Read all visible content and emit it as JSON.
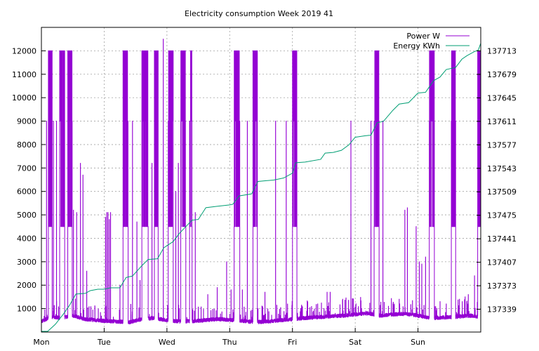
{
  "chart_data": {
    "type": "line",
    "title": "Electricity consumption Week 2019 41",
    "xlabel": "",
    "ylabel": "",
    "x_tick_labels": [
      "Mon",
      "Tue",
      "Wed",
      "Thu",
      "Fri",
      "Sat",
      "Sun"
    ],
    "xlim": [
      0,
      7
    ],
    "ylim": [
      0,
      13000
    ],
    "y_ticks": [
      1000,
      2000,
      3000,
      4000,
      5000,
      6000,
      7000,
      8000,
      9000,
      10000,
      11000,
      12000
    ],
    "y2lim": [
      137306,
      137747
    ],
    "y2_ticks": [
      137339,
      137373,
      137407,
      137441,
      137475,
      137509,
      137543,
      137577,
      137611,
      137645,
      137679,
      137713
    ],
    "grid": true,
    "legend": "top-right",
    "colors": {
      "power": "#9400d3",
      "energy": "#009e73"
    },
    "series": [
      {
        "name": "Power W",
        "axis": "left",
        "baseline": [
          [
            0.0,
            450
          ],
          [
            0.15,
            650
          ],
          [
            0.3,
            600
          ],
          [
            0.5,
            700
          ],
          [
            0.7,
            550
          ],
          [
            0.9,
            500
          ],
          [
            1.0,
            480
          ],
          [
            1.2,
            450
          ],
          [
            1.4,
            420
          ],
          [
            1.6,
            550
          ],
          [
            1.8,
            600
          ],
          [
            2.0,
            500
          ],
          [
            2.2,
            450
          ],
          [
            2.5,
            480
          ],
          [
            2.8,
            550
          ],
          [
            3.0,
            520
          ],
          [
            3.2,
            480
          ],
          [
            3.4,
            420
          ],
          [
            3.6,
            450
          ],
          [
            3.8,
            500
          ],
          [
            4.0,
            550
          ],
          [
            4.2,
            600
          ],
          [
            4.5,
            650
          ],
          [
            4.8,
            700
          ],
          [
            5.0,
            750
          ],
          [
            5.2,
            800
          ],
          [
            5.4,
            700
          ],
          [
            5.6,
            750
          ],
          [
            5.8,
            780
          ],
          [
            6.0,
            700
          ],
          [
            6.2,
            600
          ],
          [
            6.4,
            620
          ],
          [
            6.6,
            650
          ],
          [
            6.8,
            700
          ],
          [
            7.0,
            650
          ]
        ],
        "heavy_blocks": [
          [
            0.11,
            0.17
          ],
          [
            0.29,
            0.37
          ],
          [
            0.42,
            0.49
          ],
          [
            1.3,
            1.38
          ],
          [
            1.6,
            1.7
          ],
          [
            1.8,
            1.86
          ],
          [
            2.02,
            2.1
          ],
          [
            2.22,
            2.3
          ],
          [
            2.36,
            2.4
          ],
          [
            3.07,
            3.16
          ],
          [
            3.37,
            3.44
          ],
          [
            4.0,
            4.07
          ],
          [
            5.3,
            5.38
          ],
          [
            6.18,
            6.26
          ],
          [
            6.53,
            6.6
          ],
          [
            6.95,
            7.0
          ]
        ],
        "heavy_range": [
          4500,
          12000
        ],
        "spikes": [
          [
            0.08,
            9000
          ],
          [
            0.19,
            9000
          ],
          [
            0.24,
            9000
          ],
          [
            0.51,
            5200
          ],
          [
            0.56,
            5100
          ],
          [
            0.62,
            7200
          ],
          [
            0.66,
            6700
          ],
          [
            0.72,
            2600
          ],
          [
            1.02,
            4900
          ],
          [
            1.04,
            5100
          ],
          [
            1.06,
            5100
          ],
          [
            1.08,
            4800
          ],
          [
            1.1,
            5100
          ],
          [
            1.25,
            2000
          ],
          [
            1.45,
            9000
          ],
          [
            1.52,
            4700
          ],
          [
            1.57,
            2200
          ],
          [
            1.76,
            7200
          ],
          [
            1.94,
            12500
          ],
          [
            2.14,
            6000
          ],
          [
            2.18,
            7200
          ],
          [
            2.45,
            5100
          ],
          [
            2.65,
            1600
          ],
          [
            2.8,
            1900
          ],
          [
            2.95,
            3000
          ],
          [
            3.02,
            1800
          ],
          [
            3.2,
            1800
          ],
          [
            3.28,
            9000
          ],
          [
            3.45,
            1000
          ],
          [
            3.56,
            1700
          ],
          [
            3.73,
            9000
          ],
          [
            3.9,
            9000
          ],
          [
            4.15,
            1100
          ],
          [
            4.4,
            1200
          ],
          [
            4.55,
            1700
          ],
          [
            4.6,
            1700
          ],
          [
            4.8,
            1400
          ],
          [
            4.93,
            9000
          ],
          [
            5.1,
            1000
          ],
          [
            5.25,
            9000
          ],
          [
            5.44,
            9000
          ],
          [
            5.6,
            1200
          ],
          [
            5.7,
            1400
          ],
          [
            5.79,
            5200
          ],
          [
            5.83,
            5300
          ],
          [
            5.97,
            4500
          ],
          [
            6.02,
            3000
          ],
          [
            6.06,
            2900
          ],
          [
            6.12,
            3200
          ],
          [
            6.35,
            1300
          ],
          [
            6.45,
            1200
          ],
          [
            6.66,
            1400
          ],
          [
            6.75,
            1500
          ],
          [
            6.8,
            1600
          ],
          [
            6.9,
            2400
          ]
        ]
      },
      {
        "name": "Energy KWh",
        "axis": "right",
        "points": [
          [
            0.0,
            137307
          ],
          [
            0.1,
            137307
          ],
          [
            0.22,
            137317
          ],
          [
            0.35,
            137332
          ],
          [
            0.45,
            137345
          ],
          [
            0.55,
            137361
          ],
          [
            0.7,
            137362
          ],
          [
            0.78,
            137366
          ],
          [
            0.9,
            137368
          ],
          [
            1.0,
            137368
          ],
          [
            1.1,
            137370
          ],
          [
            1.25,
            137370
          ],
          [
            1.35,
            137385
          ],
          [
            1.45,
            137387
          ],
          [
            1.6,
            137402
          ],
          [
            1.7,
            137411
          ],
          [
            1.85,
            137412
          ],
          [
            1.95,
            137428
          ],
          [
            2.1,
            137437
          ],
          [
            2.2,
            137449
          ],
          [
            2.4,
            137468
          ],
          [
            2.5,
            137469
          ],
          [
            2.62,
            137486
          ],
          [
            2.8,
            137488
          ],
          [
            3.0,
            137490
          ],
          [
            3.05,
            137491
          ],
          [
            3.15,
            137503
          ],
          [
            3.35,
            137506
          ],
          [
            3.45,
            137524
          ],
          [
            3.7,
            137526
          ],
          [
            3.86,
            137529
          ],
          [
            4.0,
            137536
          ],
          [
            4.05,
            137551
          ],
          [
            4.2,
            137552
          ],
          [
            4.45,
            137556
          ],
          [
            4.52,
            137565
          ],
          [
            4.65,
            137566
          ],
          [
            4.78,
            137569
          ],
          [
            4.9,
            137577
          ],
          [
            5.0,
            137588
          ],
          [
            5.15,
            137590
          ],
          [
            5.25,
            137591
          ],
          [
            5.35,
            137609
          ],
          [
            5.45,
            137611
          ],
          [
            5.6,
            137627
          ],
          [
            5.7,
            137636
          ],
          [
            5.85,
            137638
          ],
          [
            6.0,
            137652
          ],
          [
            6.12,
            137653
          ],
          [
            6.25,
            137670
          ],
          [
            6.35,
            137675
          ],
          [
            6.45,
            137686
          ],
          [
            6.6,
            137689
          ],
          [
            6.7,
            137701
          ],
          [
            6.78,
            137706
          ],
          [
            6.9,
            137712
          ],
          [
            6.96,
            137714
          ],
          [
            7.0,
            137724
          ]
        ]
      }
    ]
  }
}
